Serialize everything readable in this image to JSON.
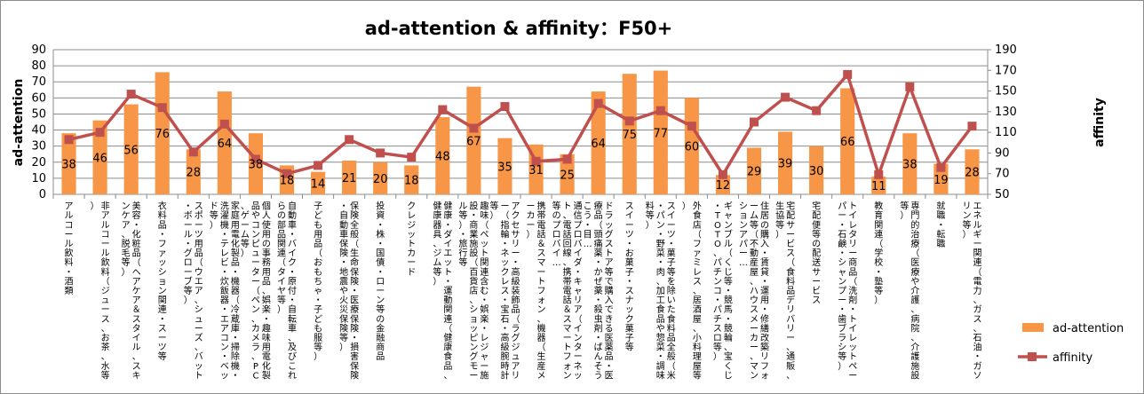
{
  "chart_data": {
    "type": "bar",
    "title": "ad-attention & affinity：F50+",
    "ylabel_left": "ad-attention",
    "ylabel_right": "affinity",
    "ylim_left": [
      0,
      90
    ],
    "yticks_left": [
      0,
      10,
      20,
      30,
      40,
      50,
      60,
      70,
      80,
      90
    ],
    "ylim_right": [
      50,
      190
    ],
    "yticks_right": [
      50,
      70,
      90,
      110,
      130,
      150,
      170,
      190
    ],
    "grid": true,
    "legend_position": "right",
    "colors": {
      "bar": "#F79646",
      "line": "#C0504D"
    },
    "categories": [
      "アルコール飲料・酒類",
      "非アルコール飲料（ジュース、お茶、水等）",
      "美容・化粧品（ヘアケア＆スタイル、スキンケア、脱毛等）",
      "衣料品・ファッション関連・スーツ等",
      "スポーツ用品（ウエア、シューズ、バット・ボール・グローブ等）",
      "家庭用電化製品・機器（冷蔵庫・掃除機・洗濯機・テレビ・炊飯器・エアコン・ベッド等）",
      "個人使用の事務用品、娯楽・趣味用電化製品やコンピューター（ペン、カメラ、PC、ゲーム等）",
      "自動車・バイク・原付・自転車、及びこれらの部品関連（タイヤ等）",
      "子ども用品（おもちゃ・子ども服等）",
      "保険全般（生命保険・医療保険・損害保険・自動車保険・地震や火災保険等）",
      "投資・株・国債・ローン等の金融商品",
      "クレジットカード",
      "健康・ダイエット・運動関連（健康食品、健康器具、ジム等）",
      "趣味（ペット関連含む・娯楽・レジャー施設・商業施設（百貨店、ショッピングモール等）・旅行等",
      "アクセサリー・高級装飾品（ラグジュアリー（指輪・ネックレス・宝石・高級腕時計等）",
      "携帯電話＆スマートフォン、機器（生産メーカー）",
      "通信プロバイダ・キャリア（インターネット、電話回線、携帯電話＆スマートフォン等のプロバイ…",
      "ドラッグストア等で購入できる医薬品・医療品（頭痛薬・かぜ薬・殺虫剤・ばんそうこう・目…",
      "スイーツ・お菓子・スナック菓子等",
      "スイーツ・菓子等を除いた食料品全般（米・パン・野菜・肉、加工食品や惣菜・調味料等）",
      "外食店（ファミレス、居酒屋、小料理屋等）",
      "ギャンブル（くじ等・競馬・競輪、宝くじ・TOTO、パチンコ・パチスロ等）",
      "住居の購入・賃貸・運用・修繕改築リフォーム等（不動産屋、ハウスメーカー、マンションアパー…",
      "宅配サービス（食料品デリバリー、通販、生協等）",
      "宅配便等の配送サービス",
      "トイレタリー商品（洗剤・トイレットペーパー・石鹸・シャンプー・歯ブラシ等）",
      "教育関連（学校・塾等）",
      "専門的治療（医療や介護、病院、介護施設等）",
      "就職・転職",
      "エネルギー関連（電力、ガス、石油・ガソリン等）"
    ],
    "series": [
      {
        "name": "ad-attention",
        "type": "bar",
        "axis": "left",
        "values": [
          38,
          46,
          56,
          76,
          28,
          64,
          38,
          18,
          14,
          21,
          20,
          18,
          48,
          67,
          35,
          31,
          25,
          64,
          75,
          77,
          60,
          12,
          29,
          39,
          30,
          66,
          11,
          38,
          19,
          28
        ]
      },
      {
        "name": "affinity",
        "type": "line",
        "axis": "right",
        "values": [
          103,
          110,
          147,
          134,
          91,
          118,
          84,
          70,
          78,
          103,
          90,
          86,
          132,
          114,
          135,
          82,
          84,
          138,
          121,
          131,
          116,
          69,
          120,
          144,
          131,
          166,
          69,
          154,
          76,
          116
        ]
      }
    ]
  }
}
